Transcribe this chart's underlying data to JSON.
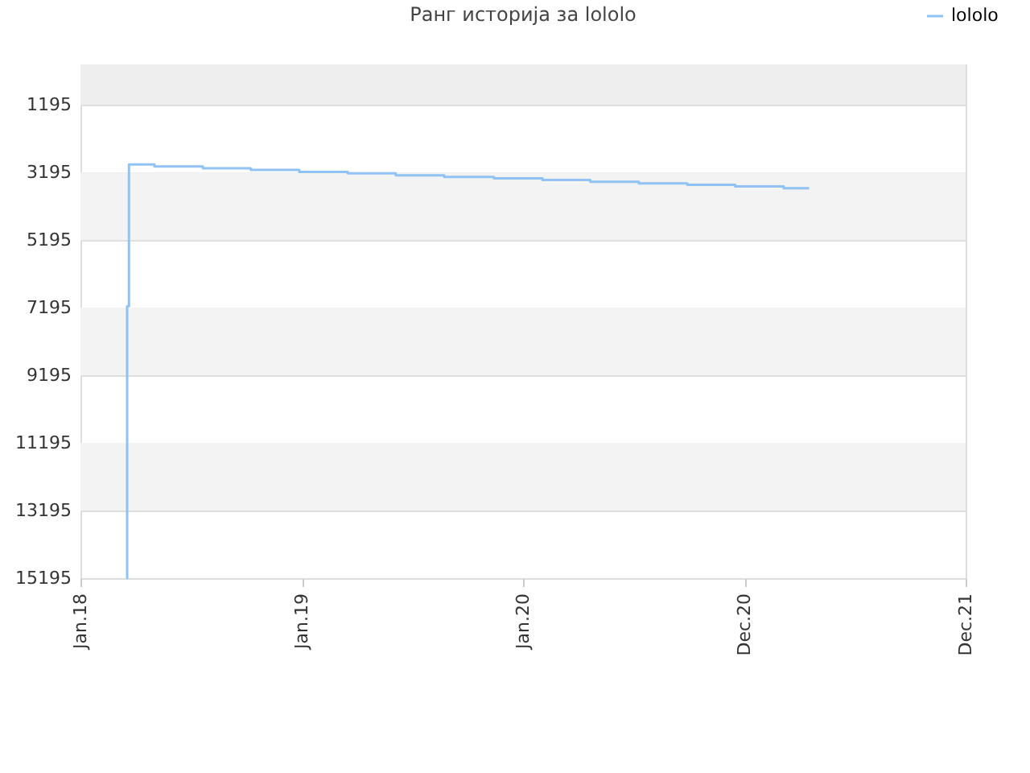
{
  "chart_data": {
    "type": "step",
    "title": "Ранг историја за lololo",
    "x": [
      "2018-03-18",
      "2018-03-19",
      "2018-03-22",
      "2018-05-03",
      "2018-07-22",
      "2018-10-09",
      "2018-12-28",
      "2019-03-18",
      "2019-06-05",
      "2019-08-24",
      "2019-11-14",
      "2020-02-02",
      "2020-04-21",
      "2020-07-10",
      "2020-09-28",
      "2020-12-16",
      "2021-03-06",
      "2021-04-17"
    ],
    "series": [
      {
        "name": "lololo",
        "color": "#90c3f3",
        "values": [
          15195,
          7150,
          2960,
          3020,
          3070,
          3120,
          3180,
          3220,
          3280,
          3330,
          3370,
          3420,
          3470,
          3520,
          3560,
          3610,
          3660,
          3660
        ]
      }
    ],
    "bands": [
      {
        "axis": "y",
        "from": 0,
        "to": 1195,
        "color": "#eeeeee"
      },
      {
        "axis": "y",
        "from": 3195,
        "to": 5195,
        "color": "#f3f3f3"
      },
      {
        "axis": "y",
        "from": 7195,
        "to": 9195,
        "color": "#f3f3f3"
      },
      {
        "axis": "y",
        "from": 11195,
        "to": 13195,
        "color": "#f3f3f3"
      }
    ],
    "xlim": [
      "2018-01-01",
      "2021-12-31"
    ],
    "xticks": [
      {
        "value": "2018-01-01",
        "label": "Jan.18"
      },
      {
        "value": "2019-01-01",
        "label": "Jan.19"
      },
      {
        "value": "2020-01-01",
        "label": "Jan.20"
      },
      {
        "value": "2020-12-31",
        "label": "Dec.20"
      },
      {
        "value": "2021-12-31",
        "label": "Dec.21"
      }
    ],
    "ylim": [
      15195,
      0
    ],
    "yticks": [
      1195,
      3195,
      5195,
      7195,
      9195,
      11195,
      13195,
      15195
    ],
    "grid": "y",
    "legend": "top right",
    "marker": "none",
    "line_style": "solid"
  }
}
